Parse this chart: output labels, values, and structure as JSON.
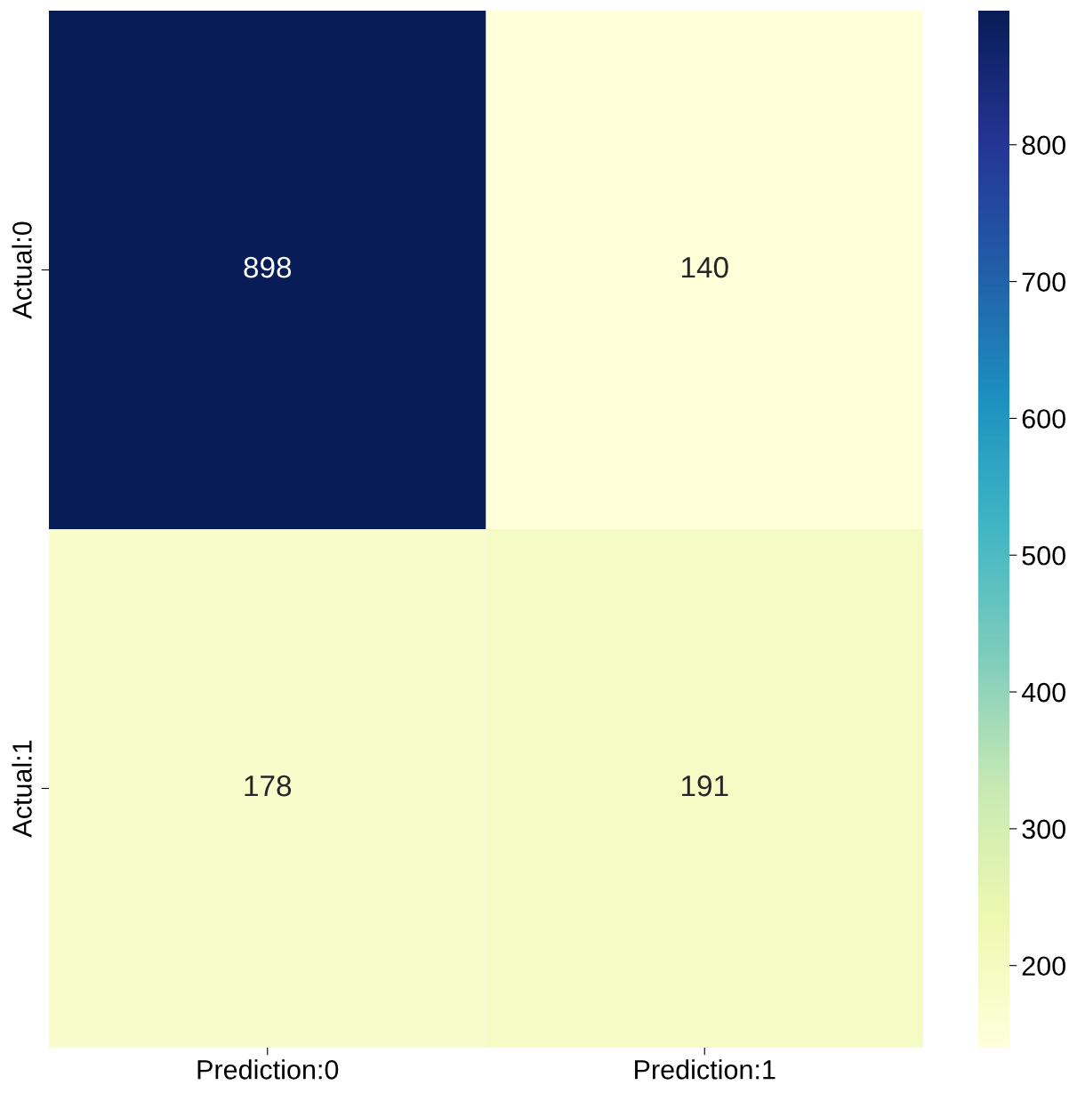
{
  "chart_data": {
    "type": "heatmap",
    "categories": [
      "Prediction:0",
      "Prediction:1"
    ],
    "y_categories": [
      "Actual:0",
      "Actual:1"
    ],
    "cells": [
      [
        898,
        140
      ],
      [
        178,
        191
      ]
    ],
    "data_labels": true,
    "clim": [
      140,
      898
    ],
    "cticks": [
      200,
      300,
      400,
      500,
      600,
      700,
      800
    ]
  }
}
